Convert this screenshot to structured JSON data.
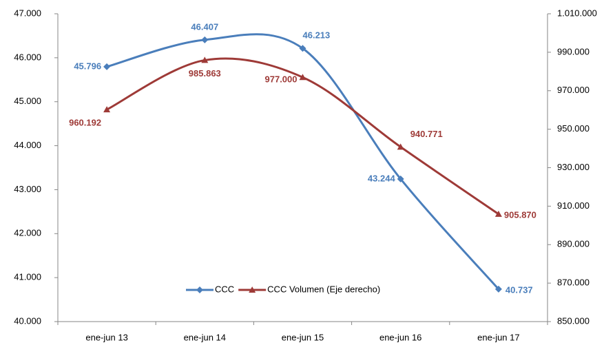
{
  "chart_data": {
    "type": "line",
    "categories": [
      "ene-jun 13",
      "ene-jun 14",
      "ene-jun 15",
      "ene-jun 16",
      "ene-jun 17"
    ],
    "series": [
      {
        "name": "CCC",
        "color": "#4a7ebb",
        "marker": "diamond",
        "values": [
          45796,
          46407,
          46213,
          43244,
          40737
        ],
        "value_labels": [
          "45.796",
          "46.407",
          "46.213",
          "43.244",
          "40.737"
        ]
      },
      {
        "name": "CCC Volumen (Eje derecho)",
        "color": "#9e3a37",
        "marker": "triangle",
        "axis": "y2",
        "values": [
          960192,
          985863,
          977000,
          940771,
          905870
        ],
        "value_labels": [
          "960.192",
          "985.863",
          "977.000",
          "940.771",
          "905.870"
        ]
      }
    ],
    "ylim": [
      40000,
      47000
    ],
    "yticks": [
      {
        "value": 40000,
        "label": "40.000"
      },
      {
        "value": 41000,
        "label": "41.000"
      },
      {
        "value": 42000,
        "label": "42.000"
      },
      {
        "value": 43000,
        "label": "43.000"
      },
      {
        "value": 44000,
        "label": "44.000"
      },
      {
        "value": 45000,
        "label": "45.000"
      },
      {
        "value": 46000,
        "label": "46.000"
      },
      {
        "value": 47000,
        "label": "47.000"
      }
    ],
    "y2lim": [
      850000,
      1010000
    ],
    "y2ticks": [
      {
        "value": 850000,
        "label": "850.000"
      },
      {
        "value": 870000,
        "label": "870.000"
      },
      {
        "value": 890000,
        "label": "890.000"
      },
      {
        "value": 910000,
        "label": "910.000"
      },
      {
        "value": 930000,
        "label": "930.000"
      },
      {
        "value": 950000,
        "label": "950.000"
      },
      {
        "value": 970000,
        "label": "970.000"
      },
      {
        "value": 990000,
        "label": "990.000"
      },
      {
        "value": 1010000,
        "label": "1.010.000"
      }
    ],
    "smooth": true,
    "legend": "bottom"
  }
}
